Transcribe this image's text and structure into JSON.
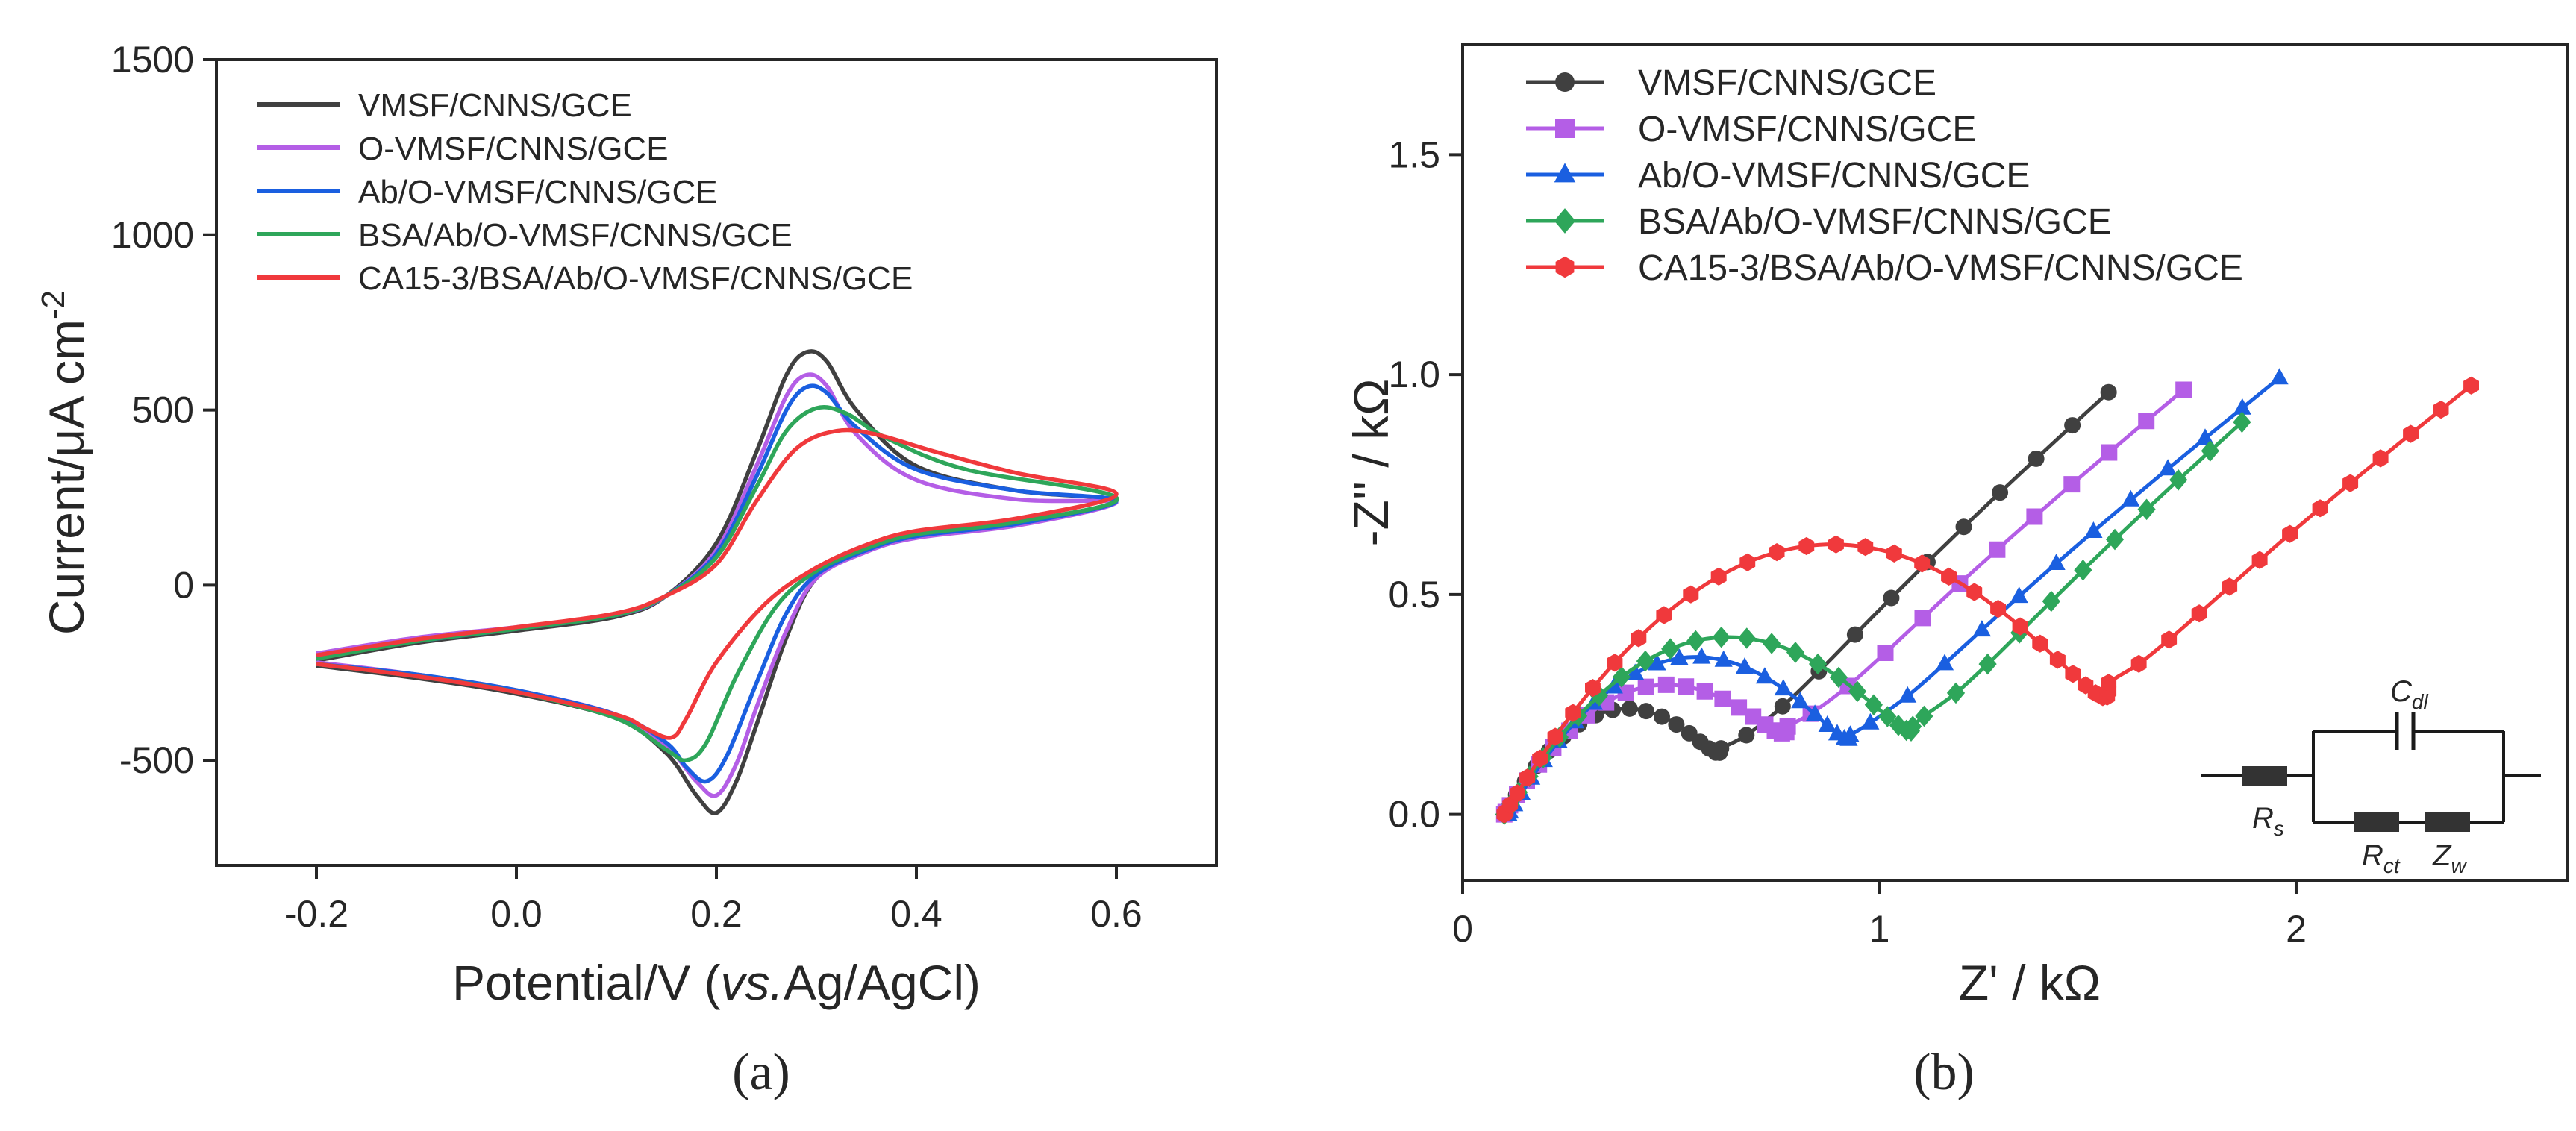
{
  "chart_data": [
    {
      "type": "line",
      "panel_label": "(a)",
      "xlabel": "Potential/V (vs.Ag/AgCl)",
      "xlabel_parts": {
        "prefix": "Potential/V (",
        "italic": "vs.",
        "suffix": "Ag/AgCl)"
      },
      "ylabel": "Current/μA cm-2",
      "ylabel_parts": {
        "main": "Current/μA cm",
        "sup": "-2"
      },
      "xlim": [
        -0.3,
        0.7
      ],
      "ylim": [
        -800,
        1500
      ],
      "xticks": [
        -0.2,
        0.0,
        0.2,
        0.4,
        0.6
      ],
      "xtick_labels": [
        "-0.2",
        "0.0",
        "0.2",
        "0.4",
        "0.6"
      ],
      "yticks": [
        -500,
        0,
        500,
        1000,
        1500
      ],
      "ytick_labels": [
        "-500",
        "0",
        "500",
        "1000",
        "1500"
      ],
      "legend_position": "top-left",
      "series": [
        {
          "name": "VMSF/CNNS/GCE",
          "color": "#404040",
          "forward": [
            [
              -0.2,
              -215
            ],
            [
              -0.1,
              -165
            ],
            [
              0.0,
              -130
            ],
            [
              0.1,
              -90
            ],
            [
              0.15,
              -30
            ],
            [
              0.2,
              120
            ],
            [
              0.24,
              380
            ],
            [
              0.27,
              600
            ],
            [
              0.29,
              665
            ],
            [
              0.31,
              640
            ],
            [
              0.34,
              500
            ],
            [
              0.4,
              340
            ],
            [
              0.5,
              270
            ],
            [
              0.6,
              240
            ]
          ],
          "reverse": [
            [
              0.6,
              215
            ],
            [
              0.5,
              175
            ],
            [
              0.4,
              140
            ],
            [
              0.35,
              100
            ],
            [
              0.3,
              20
            ],
            [
              0.27,
              -150
            ],
            [
              0.24,
              -400
            ],
            [
              0.22,
              -560
            ],
            [
              0.2,
              -650
            ],
            [
              0.18,
              -600
            ],
            [
              0.15,
              -480
            ],
            [
              0.1,
              -380
            ],
            [
              0.0,
              -310
            ],
            [
              -0.1,
              -265
            ],
            [
              -0.2,
              -230
            ]
          ]
        },
        {
          "name": "O-VMSF/CNNS/GCE",
          "color": "#b45ee6",
          "forward": [
            [
              -0.2,
              -195
            ],
            [
              -0.1,
              -150
            ],
            [
              0.0,
              -120
            ],
            [
              0.1,
              -85
            ],
            [
              0.15,
              -30
            ],
            [
              0.2,
              100
            ],
            [
              0.24,
              340
            ],
            [
              0.27,
              540
            ],
            [
              0.29,
              600
            ],
            [
              0.31,
              570
            ],
            [
              0.34,
              430
            ],
            [
              0.4,
              300
            ],
            [
              0.5,
              245
            ],
            [
              0.6,
              235
            ]
          ],
          "reverse": [
            [
              0.6,
              210
            ],
            [
              0.5,
              170
            ],
            [
              0.4,
              135
            ],
            [
              0.35,
              95
            ],
            [
              0.3,
              20
            ],
            [
              0.27,
              -130
            ],
            [
              0.24,
              -350
            ],
            [
              0.22,
              -510
            ],
            [
              0.2,
              -600
            ],
            [
              0.18,
              -560
            ],
            [
              0.15,
              -460
            ],
            [
              0.1,
              -370
            ],
            [
              0.0,
              -300
            ],
            [
              -0.1,
              -255
            ],
            [
              -0.2,
              -220
            ]
          ]
        },
        {
          "name": "Ab/O-VMSF/CNNS/GCE",
          "color": "#1a5fe0",
          "forward": [
            [
              -0.2,
              -205
            ],
            [
              -0.1,
              -160
            ],
            [
              0.0,
              -125
            ],
            [
              0.1,
              -85
            ],
            [
              0.15,
              -30
            ],
            [
              0.2,
              90
            ],
            [
              0.24,
              310
            ],
            [
              0.27,
              500
            ],
            [
              0.29,
              565
            ],
            [
              0.31,
              550
            ],
            [
              0.34,
              450
            ],
            [
              0.4,
              330
            ],
            [
              0.5,
              270
            ],
            [
              0.6,
              240
            ]
          ],
          "reverse": [
            [
              0.6,
              215
            ],
            [
              0.5,
              175
            ],
            [
              0.4,
              140
            ],
            [
              0.35,
              100
            ],
            [
              0.3,
              30
            ],
            [
              0.27,
              -80
            ],
            [
              0.24,
              -280
            ],
            [
              0.21,
              -490
            ],
            [
              0.19,
              -560
            ],
            [
              0.17,
              -520
            ],
            [
              0.15,
              -450
            ],
            [
              0.1,
              -370
            ],
            [
              0.0,
              -300
            ],
            [
              -0.1,
              -255
            ],
            [
              -0.2,
              -225
            ]
          ]
        },
        {
          "name": "BSA/Ab/O-VMSF/CNNS/GCE",
          "color": "#2ea65a",
          "forward": [
            [
              -0.2,
              -210
            ],
            [
              -0.1,
              -160
            ],
            [
              0.0,
              -125
            ],
            [
              0.1,
              -85
            ],
            [
              0.15,
              -30
            ],
            [
              0.2,
              80
            ],
            [
              0.24,
              280
            ],
            [
              0.27,
              440
            ],
            [
              0.3,
              505
            ],
            [
              0.33,
              490
            ],
            [
              0.37,
              420
            ],
            [
              0.45,
              330
            ],
            [
              0.6,
              250
            ]
          ],
          "reverse": [
            [
              0.6,
              220
            ],
            [
              0.5,
              180
            ],
            [
              0.4,
              145
            ],
            [
              0.35,
              105
            ],
            [
              0.3,
              40
            ],
            [
              0.26,
              -60
            ],
            [
              0.22,
              -260
            ],
            [
              0.19,
              -450
            ],
            [
              0.17,
              -500
            ],
            [
              0.15,
              -470
            ],
            [
              0.1,
              -380
            ],
            [
              0.0,
              -305
            ],
            [
              -0.1,
              -260
            ],
            [
              -0.2,
              -225
            ]
          ]
        },
        {
          "name": "CA15-3/BSA/Ab/O-VMSF/CNNS/GCE",
          "color": "#f0393c",
          "forward": [
            [
              -0.2,
              -200
            ],
            [
              -0.1,
              -155
            ],
            [
              0.0,
              -120
            ],
            [
              0.1,
              -80
            ],
            [
              0.15,
              -30
            ],
            [
              0.2,
              60
            ],
            [
              0.24,
              240
            ],
            [
              0.28,
              390
            ],
            [
              0.32,
              440
            ],
            [
              0.36,
              430
            ],
            [
              0.42,
              380
            ],
            [
              0.5,
              320
            ],
            [
              0.6,
              260
            ]
          ],
          "reverse": [
            [
              0.6,
              230
            ],
            [
              0.5,
              190
            ],
            [
              0.4,
              155
            ],
            [
              0.35,
              115
            ],
            [
              0.3,
              50
            ],
            [
              0.25,
              -50
            ],
            [
              0.2,
              -220
            ],
            [
              0.17,
              -380
            ],
            [
              0.155,
              -435
            ],
            [
              0.13,
              -410
            ],
            [
              0.1,
              -370
            ],
            [
              0.0,
              -305
            ],
            [
              -0.1,
              -260
            ],
            [
              -0.2,
              -225
            ]
          ]
        }
      ]
    },
    {
      "type": "scatter",
      "panel_label": "(b)",
      "xlabel": "Z' / kΩ",
      "ylabel": "-Z'' / kΩ",
      "xlim": [
        0,
        2.65
      ],
      "ylim": [
        -0.15,
        1.75
      ],
      "xticks": [
        0,
        1,
        2
      ],
      "xtick_labels": [
        "0",
        "1",
        "2"
      ],
      "yticks": [
        0.0,
        0.5,
        1.0,
        1.5
      ],
      "ytick_labels": [
        "0.0",
        "0.5",
        "1.0",
        "1.5"
      ],
      "legend_position": "top-left",
      "inset_labels": [
        "C",
        "dl",
        "R",
        "s",
        "R",
        "ct",
        "Z",
        "w"
      ],
      "series": [
        {
          "name": "VMSF/CNNS/GCE",
          "color": "#404040",
          "marker": "circle",
          "arc": {
            "x0": 0.1,
            "rct": 0.52,
            "peak": 0.2,
            "z_end": 0.62,
            "z_ret": 0.15,
            "slope": 0.85,
            "x_end": 1.55,
            "n_arc": 20,
            "n_line": 11
          }
        },
        {
          "name": "O-VMSF/CNNS/GCE",
          "color": "#b45ee6",
          "marker": "square",
          "arc": {
            "x0": 0.1,
            "rct": 0.68,
            "peak": 0.24,
            "z_end": 0.78,
            "z_ret": 0.2,
            "slope": 0.78,
            "x_end": 1.73,
            "n_arc": 22,
            "n_line": 11
          }
        },
        {
          "name": "Ab/O-VMSF/CNNS/GCE",
          "color": "#1a5fe0",
          "marker": "triangle",
          "arc": {
            "x0": 0.11,
            "rct": 0.82,
            "peak": 0.31,
            "z_end": 0.93,
            "z_ret": 0.18,
            "slope": 0.76,
            "x_end": 1.96,
            "n_arc": 24,
            "n_line": 12
          }
        },
        {
          "name": "BSA/Ab/O-VMSF/CNNS/GCE",
          "color": "#2ea65a",
          "marker": "diamond",
          "arc": {
            "x0": 0.1,
            "rct": 0.98,
            "peak": 0.35,
            "z_end": 1.08,
            "z_ret": 0.2,
            "slope": 0.83,
            "x_end": 1.87,
            "n_arc": 25,
            "n_line": 11
          }
        },
        {
          "name": "CA15-3/BSA/Ab/O-VMSF/CNNS/GCE",
          "color": "#f0393c",
          "marker": "hexagon",
          "arc": {
            "x0": 0.1,
            "rct": 1.45,
            "peak": 0.54,
            "z_end": 1.58,
            "z_ret": 0.28,
            "slope": 0.74,
            "x_end": 2.42,
            "n_arc": 32,
            "n_line": 13
          }
        }
      ]
    }
  ]
}
